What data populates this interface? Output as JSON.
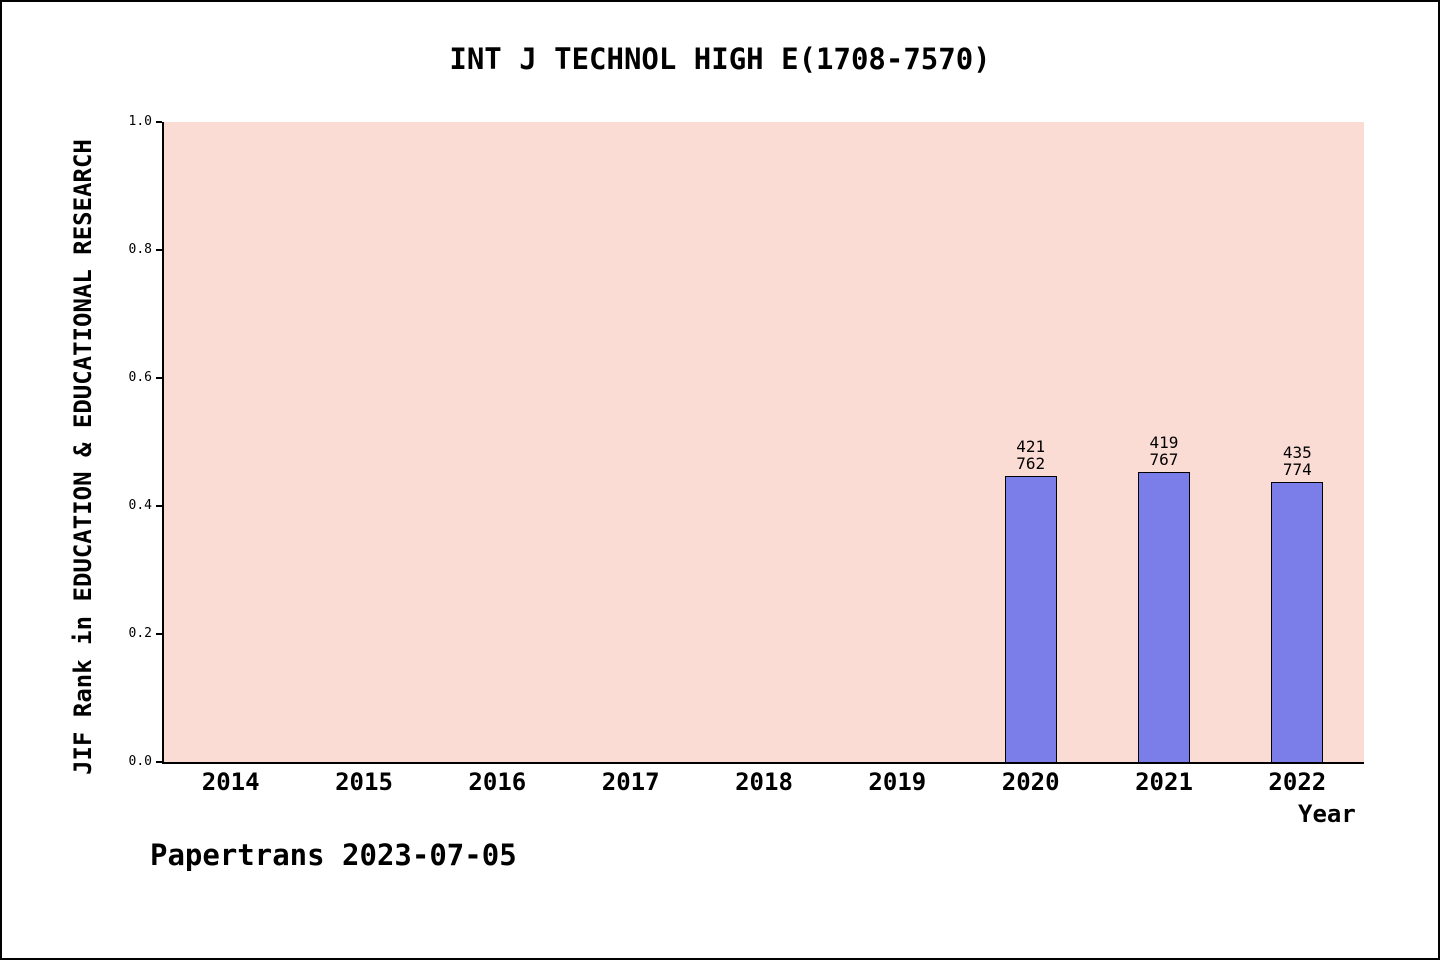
{
  "page": {
    "background": "#ffffff",
    "border_color": "#000000"
  },
  "chart_data": {
    "type": "bar",
    "title": "INT J TECHNOL HIGH E(1708-7570)",
    "xlabel": "Year",
    "ylabel": "JIF Rank in EDUCATION & EDUCATIONAL RESEARCH",
    "categories": [
      "2014",
      "2015",
      "2016",
      "2017",
      "2018",
      "2019",
      "2020",
      "2021",
      "2022"
    ],
    "values": [
      null,
      null,
      null,
      null,
      null,
      null,
      0.447,
      0.453,
      0.438
    ],
    "bar_labels": [
      null,
      null,
      null,
      null,
      null,
      null,
      "421\n762",
      "419\n767",
      "435\n774"
    ],
    "y_ticks": [
      0.0,
      0.2,
      0.4,
      0.6,
      0.8,
      1.0
    ],
    "y_tick_labels": [
      "0.0",
      "0.2",
      "0.4",
      "0.6",
      "0.8",
      "1.0"
    ],
    "ylim": [
      0,
      1
    ],
    "grid": false,
    "legend": null,
    "plot_bg_color": "#fbdcd5",
    "bar_fill_color": "#7b7de8",
    "bar_edge_color": "#000000"
  },
  "footer": {
    "text": "Papertrans 2023-07-05"
  }
}
